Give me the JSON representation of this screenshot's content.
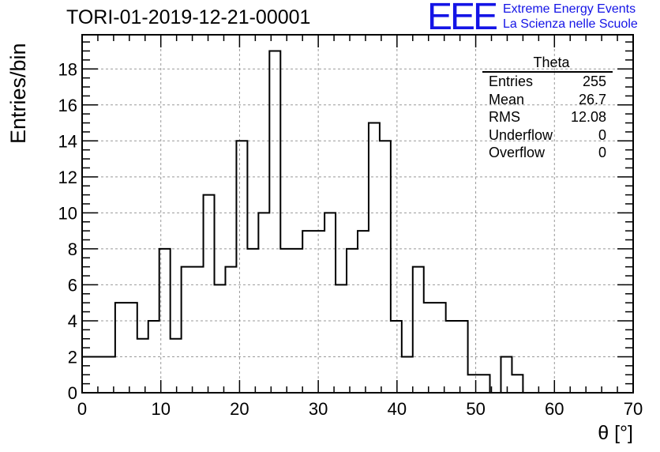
{
  "title": "TORI-01-2019-12-21-00001",
  "logo": {
    "mark": "EEE",
    "line1": "Extreme Energy Events",
    "line2": "La Scienza nelle Scuole",
    "color": "#1414e6"
  },
  "stats": {
    "name": "Theta",
    "rows": [
      {
        "label": "Entries",
        "value": "255"
      },
      {
        "label": "Mean",
        "value": "26.7"
      },
      {
        "label": "RMS",
        "value": "12.08"
      },
      {
        "label": "Underflow",
        "value": "0"
      },
      {
        "label": "Overflow",
        "value": "0"
      }
    ]
  },
  "chart_data": {
    "type": "bar",
    "style": "histogram-step",
    "xlabel": "θ [°]",
    "ylabel": "Entries/bin",
    "xlim": [
      0,
      70
    ],
    "ylim": [
      0,
      19.9
    ],
    "x_ticks": [
      0,
      10,
      20,
      30,
      40,
      50,
      60,
      70
    ],
    "y_ticks": [
      0,
      2,
      4,
      6,
      8,
      10,
      12,
      14,
      16,
      18
    ],
    "grid": true,
    "bin_width": 1.4,
    "bin_edges_start": 0,
    "values": [
      2,
      2,
      2,
      5,
      5,
      3,
      4,
      8,
      3,
      7,
      7,
      11,
      6,
      7,
      14,
      8,
      10,
      19,
      8,
      8,
      9,
      9,
      10,
      6,
      8,
      9,
      15,
      14,
      4,
      2,
      7,
      5,
      5,
      4,
      4,
      1,
      1,
      0,
      2,
      1,
      0,
      0,
      0,
      0,
      0,
      0,
      0,
      0,
      0,
      0
    ]
  }
}
